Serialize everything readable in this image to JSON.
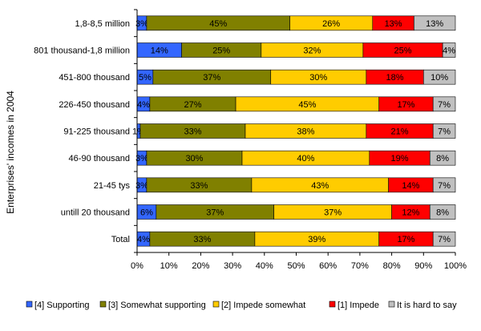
{
  "chart_data": {
    "type": "bar",
    "orientation": "horizontal",
    "stacked": "percent",
    "title": "",
    "xlabel": "",
    "ylabel": "Enterprises' incomes in 2004",
    "xlim": [
      0,
      100
    ],
    "x_ticks": [
      "0%",
      "10%",
      "20%",
      "30%",
      "40%",
      "50%",
      "60%",
      "70%",
      "80%",
      "90%",
      "100%"
    ],
    "grid": false,
    "legend_position": "bottom",
    "categories": [
      "1,8-8,5 million",
      "801 thousand-1,8 million",
      "451-800 thousand",
      "226-450 thousand",
      "91-225 thousand",
      "46-90 thousand",
      "21-45 tys",
      "untill 20 thousand",
      "Total"
    ],
    "series": [
      {
        "name": "[4] Supporting",
        "color": "#3366ff",
        "values": [
          3,
          14,
          5,
          4,
          1,
          3,
          3,
          6,
          4
        ],
        "labels": [
          "3%",
          "14%",
          "5%",
          "4%",
          "1%",
          "3%",
          "3%",
          "6%",
          "4%"
        ]
      },
      {
        "name": "[3] Somewhat supporting",
        "color": "#808000",
        "values": [
          45,
          25,
          37,
          27,
          33,
          30,
          33,
          37,
          33
        ],
        "labels": [
          "45%",
          "25%",
          "37%",
          "27%",
          "33%",
          "30%",
          "33%",
          "37%",
          "33%"
        ]
      },
      {
        "name": "[2] Impede somewhat",
        "color": "#ffcc00",
        "values": [
          26,
          32,
          30,
          45,
          38,
          40,
          43,
          37,
          39
        ],
        "labels": [
          "26%",
          "32%",
          "30%",
          "45%",
          "38%",
          "40%",
          "43%",
          "37%",
          "39%"
        ]
      },
      {
        "name": "[1] Impede",
        "color": "#ff0000",
        "values": [
          13,
          25,
          18,
          17,
          21,
          19,
          14,
          12,
          17
        ],
        "labels": [
          "13%",
          "25%",
          "18%",
          "17%",
          "21%",
          "19%",
          "14%",
          "12%",
          "17%"
        ]
      },
      {
        "name": "It is hard to say",
        "color": "#c0c0c0",
        "values": [
          13,
          4,
          10,
          7,
          7,
          8,
          7,
          8,
          7
        ],
        "labels": [
          "13%",
          "4%",
          "10%",
          "7%",
          "7%",
          "8%",
          "7%",
          "8%",
          "7%"
        ]
      }
    ]
  }
}
